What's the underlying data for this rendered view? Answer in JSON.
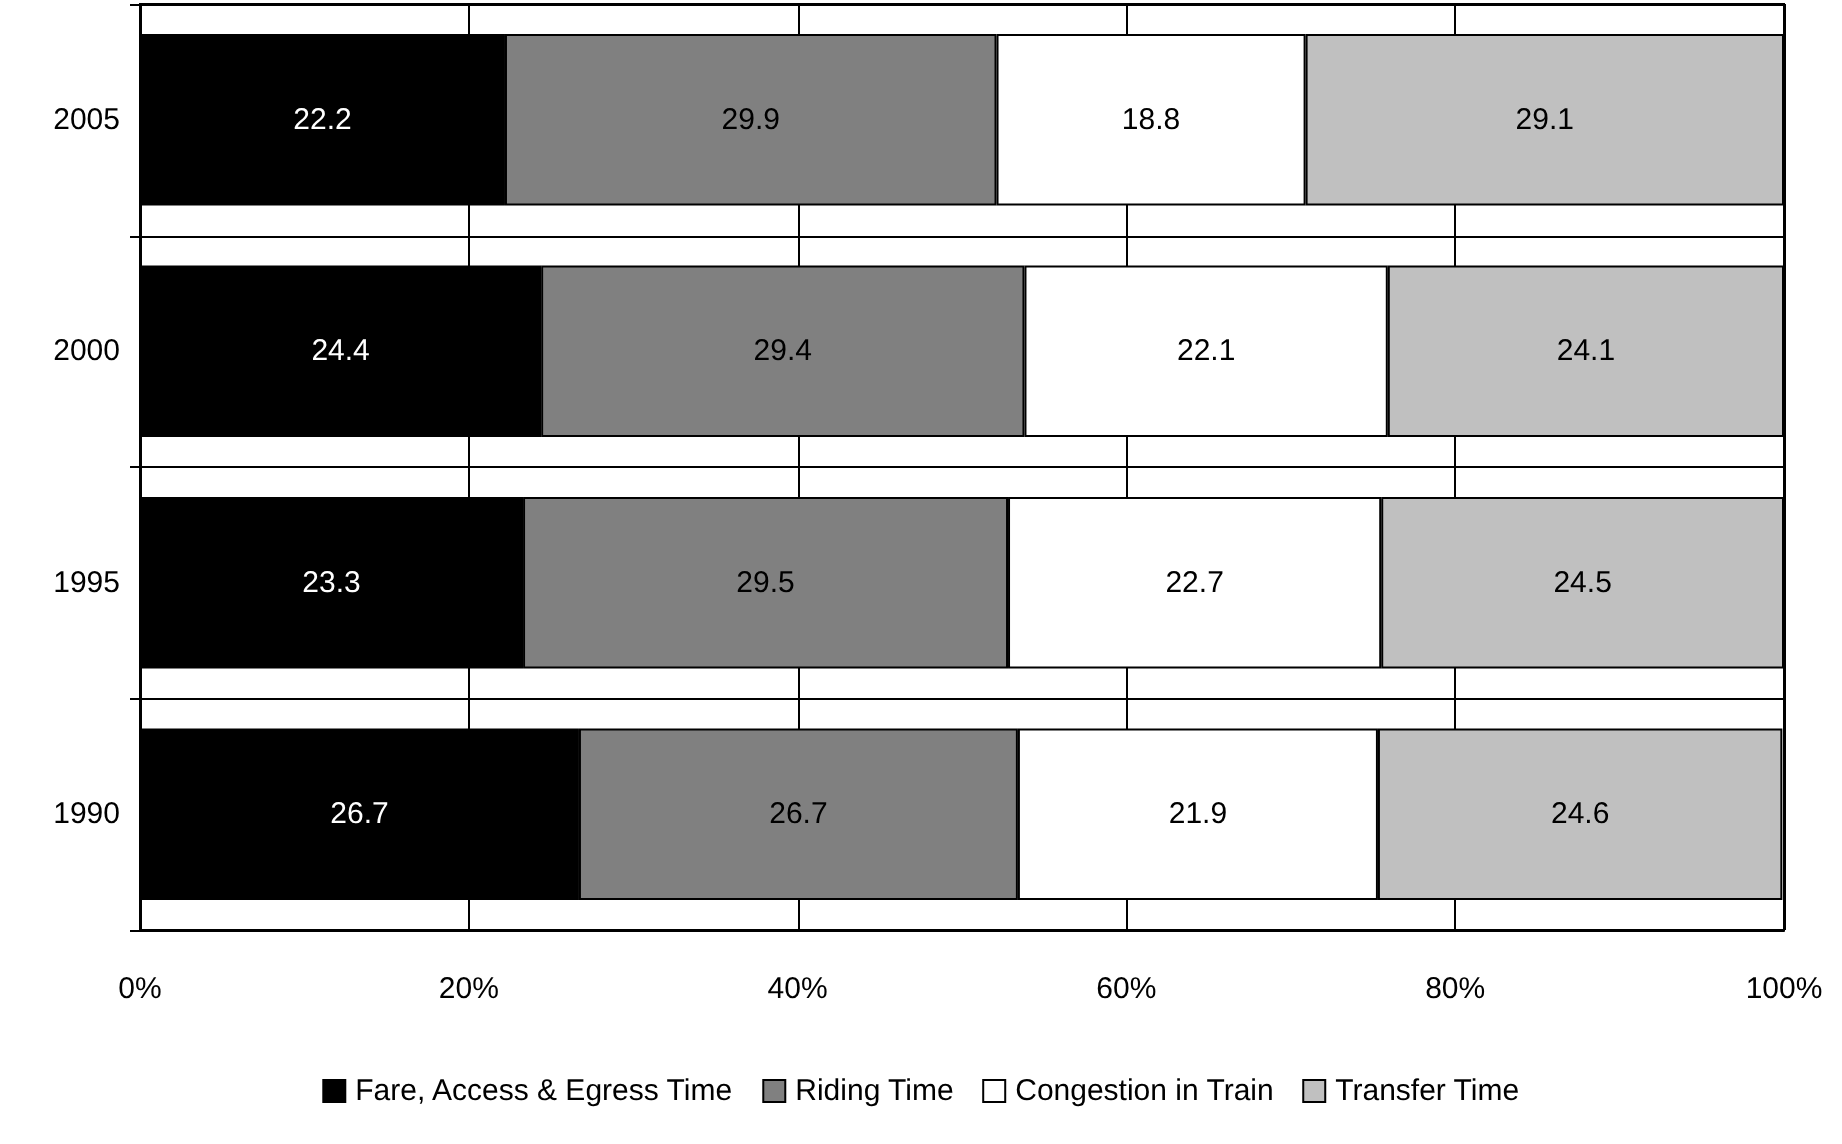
{
  "chart_data": {
    "type": "bar",
    "orientation": "horizontal",
    "stacked": true,
    "categories": [
      "2005",
      "2000",
      "1995",
      "1990"
    ],
    "series": [
      {
        "name": "Fare, Access & Egress Time",
        "color": "#000000",
        "values": [
          22.2,
          24.4,
          23.3,
          26.7
        ]
      },
      {
        "name": "Riding Time",
        "color": "#808080",
        "values": [
          29.9,
          29.4,
          29.5,
          26.7
        ]
      },
      {
        "name": "Congestion in Train",
        "color": "#ffffff",
        "values": [
          18.8,
          22.1,
          22.7,
          21.9
        ]
      },
      {
        "name": "Transfer Time",
        "color": "#c0c0c0",
        "values": [
          29.1,
          24.1,
          24.5,
          24.6
        ]
      }
    ],
    "xlim": [
      0,
      100
    ],
    "xticks": [
      {
        "value": 0,
        "label": "0%"
      },
      {
        "value": 20,
        "label": "20%"
      },
      {
        "value": 40,
        "label": "40%"
      },
      {
        "value": 60,
        "label": "60%"
      },
      {
        "value": 80,
        "label": "80%"
      },
      {
        "value": 100,
        "label": "100%"
      }
    ],
    "grid": true,
    "legend": "bottom",
    "data_labels": true
  }
}
